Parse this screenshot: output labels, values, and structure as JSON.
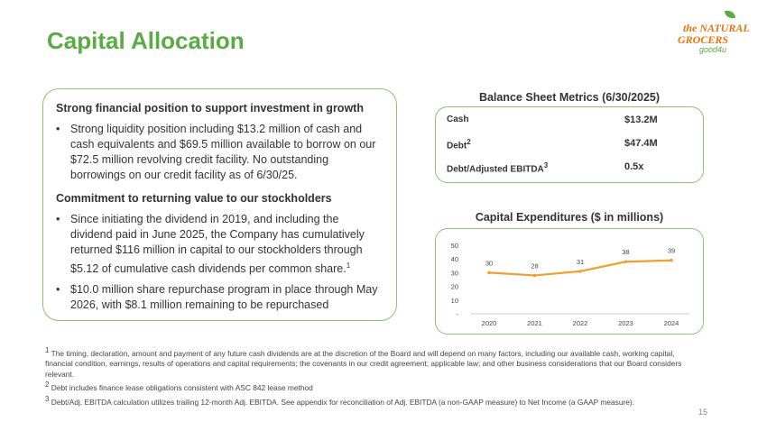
{
  "title": "Capital Allocation",
  "logo": {
    "line1": "the NATURAL",
    "line2": "GROCERS",
    "line3": "good4u"
  },
  "left_panel": {
    "heading1": "Strong financial position to support investment in growth",
    "bullet1": "Strong liquidity position including $13.2 million of cash and cash equivalents and $69.5 million available to borrow on our $72.5 million revolving credit facility. No outstanding borrowings on our credit facility as of 6/30/25.",
    "heading2": "Commitment to returning value to our stockholders",
    "bullet2": "Since initiating the dividend in 2019, and including the dividend paid in June 2025, the Company has cumulatively returned $116 million in capital to our stockholders through $5.12 of cumulative cash dividends per common share.",
    "bullet2_sup": "1",
    "bullet3": "$10.0 million share repurchase program in place through May 2026, with $8.1 million remaining to be repurchased"
  },
  "balance_sheet": {
    "title": "Balance Sheet Metrics (6/30/2025)",
    "rows": [
      {
        "label": "Cash",
        "sup": "",
        "value": "$13.2M"
      },
      {
        "label": "Debt",
        "sup": "2",
        "value": "$47.4M"
      },
      {
        "label": "Debt/Adjusted EBITDA",
        "sup": "3",
        "value": "0.5x"
      }
    ]
  },
  "chart_data": {
    "type": "line",
    "title": "Capital Expenditures ($ in millions)",
    "categories": [
      "2020",
      "2021",
      "2022",
      "2023",
      "2024"
    ],
    "values": [
      30,
      28,
      31,
      38,
      39
    ],
    "data_labels": [
      "30",
      "28",
      "31",
      "38",
      "39"
    ],
    "ylim": [
      0,
      50
    ],
    "yticks": [
      "-",
      "10",
      "20",
      "30",
      "40",
      "50"
    ],
    "color": "#f0a030",
    "grid": false
  },
  "footnotes": {
    "f1_sup": "1",
    "f1": " The timing, declaration, amount and payment of any future cash dividends are at the discretion of the Board and will depend on many factors, including our available cash, working capital, financial condition, earnings, results of operations and capital requirements; the covenants in our credit agreement; applicable law; and other business considerations that our Board considers relevant.",
    "f2_sup": "2",
    "f2": " Debt includes finance lease obligations consistent with ASC 842 lease method",
    "f3_sup": "3",
    "f3": " Debt/Adj. EBITDA calculation utilizes trailing 12-month Adj. EBITDA. See appendix for reconciliation of Adj. EBITDA (a non-GAAP measure) to Net Income (a GAAP measure)."
  },
  "page_number": "15"
}
